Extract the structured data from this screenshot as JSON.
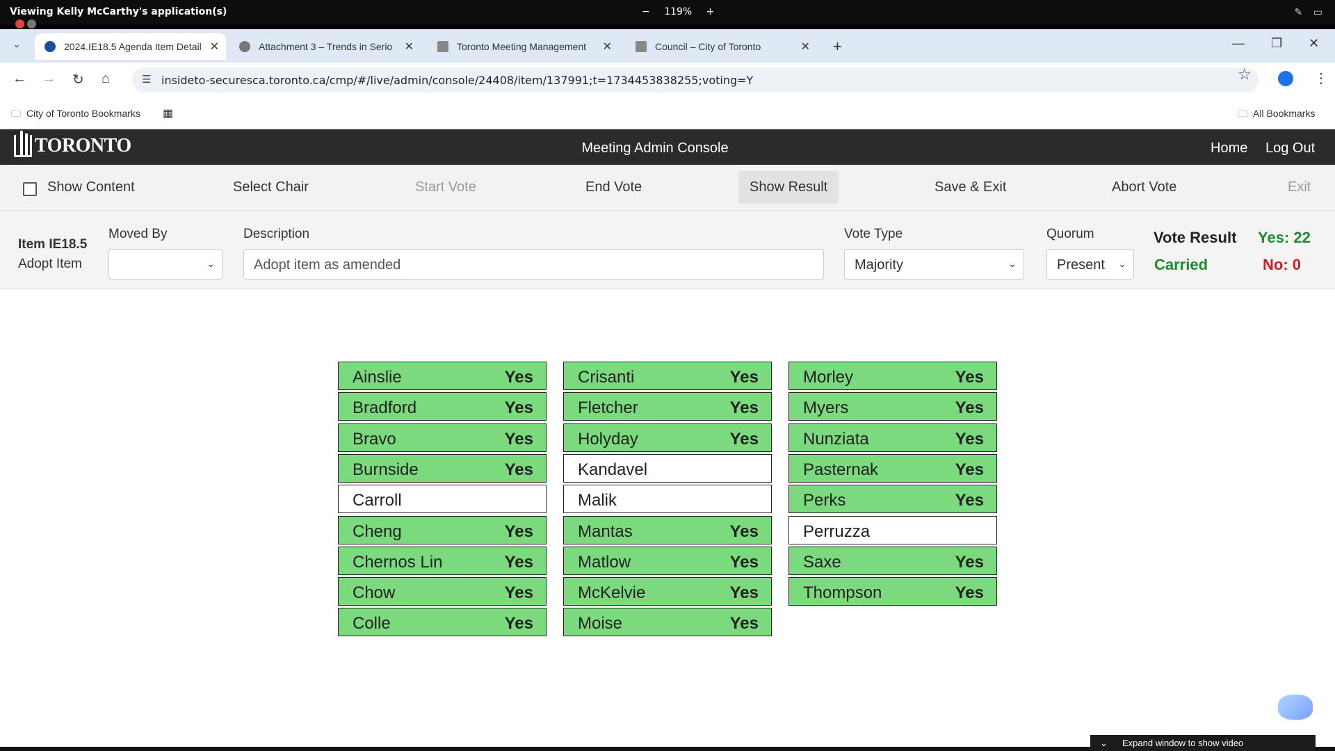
{
  "share_bar": {
    "title": "Viewing Kelly McCarthy's application(s)",
    "zoom": "119%",
    "minus": "−",
    "plus": "+"
  },
  "browser": {
    "tabs": [
      {
        "label": "2024.IE18.5 Agenda Item Detail",
        "active": true
      },
      {
        "label": "Attachment 3 – Trends in Serio",
        "active": false
      },
      {
        "label": "Toronto Meeting Management",
        "active": false
      },
      {
        "label": "Council – City of Toronto",
        "active": false
      }
    ],
    "url": "insideto-securesca.toronto.ca/cmp/#/live/admin/console/24408/item/137991;t=1734453838255;voting=Y",
    "bookmarks": {
      "left": "City of Toronto Bookmarks",
      "right": "All Bookmarks"
    }
  },
  "app": {
    "logo": "TORONTO",
    "title": "Meeting Admin Console",
    "nav": {
      "home": "Home",
      "logout": "Log Out"
    },
    "actions": {
      "show_content": "Show Content",
      "select_chair": "Select Chair",
      "start_vote": "Start Vote",
      "end_vote": "End Vote",
      "show_result": "Show Result",
      "save_exit": "Save & Exit",
      "abort_vote": "Abort Vote",
      "exit": "Exit"
    },
    "item": {
      "id": "Item IE18.5",
      "subtitle": "Adopt Item",
      "moved_by_label": "Moved By",
      "moved_by_value": "",
      "description_label": "Description",
      "description_value": "Adopt item as amended",
      "vote_type_label": "Vote Type",
      "vote_type_value": "Majority",
      "quorum_label": "Quorum",
      "quorum_value": "Present"
    },
    "result": {
      "label": "Vote Result",
      "status": "Carried",
      "yes": "Yes: 22",
      "no": "No: 0"
    },
    "votes": [
      [
        {
          "name": "Ainslie",
          "vote": "Yes"
        },
        {
          "name": "Bradford",
          "vote": "Yes"
        },
        {
          "name": "Bravo",
          "vote": "Yes"
        },
        {
          "name": "Burnside",
          "vote": "Yes"
        },
        {
          "name": "Carroll",
          "vote": ""
        },
        {
          "name": "Cheng",
          "vote": "Yes"
        },
        {
          "name": "Chernos Lin",
          "vote": "Yes"
        },
        {
          "name": "Chow",
          "vote": "Yes"
        },
        {
          "name": "Colle",
          "vote": "Yes"
        }
      ],
      [
        {
          "name": "Crisanti",
          "vote": "Yes"
        },
        {
          "name": "Fletcher",
          "vote": "Yes"
        },
        {
          "name": "Holyday",
          "vote": "Yes"
        },
        {
          "name": "Kandavel",
          "vote": ""
        },
        {
          "name": "Malik",
          "vote": ""
        },
        {
          "name": "Mantas",
          "vote": "Yes"
        },
        {
          "name": "Matlow",
          "vote": "Yes"
        },
        {
          "name": "McKelvie",
          "vote": "Yes"
        },
        {
          "name": "Moise",
          "vote": "Yes"
        }
      ],
      [
        {
          "name": "Morley",
          "vote": "Yes"
        },
        {
          "name": "Myers",
          "vote": "Yes"
        },
        {
          "name": "Nunziata",
          "vote": "Yes"
        },
        {
          "name": "Pasternak",
          "vote": "Yes"
        },
        {
          "name": "Perks",
          "vote": "Yes"
        },
        {
          "name": "Perruzza",
          "vote": ""
        },
        {
          "name": "Saxe",
          "vote": "Yes"
        },
        {
          "name": "Thompson",
          "vote": "Yes"
        }
      ]
    ]
  },
  "overlay": {
    "expand_label": "Expand window to show video"
  },
  "colors": {
    "yes_bg": "#7bd97e",
    "header_bg": "#2b2b2b",
    "carried": "#1e8c2e",
    "no": "#d41c1c"
  }
}
